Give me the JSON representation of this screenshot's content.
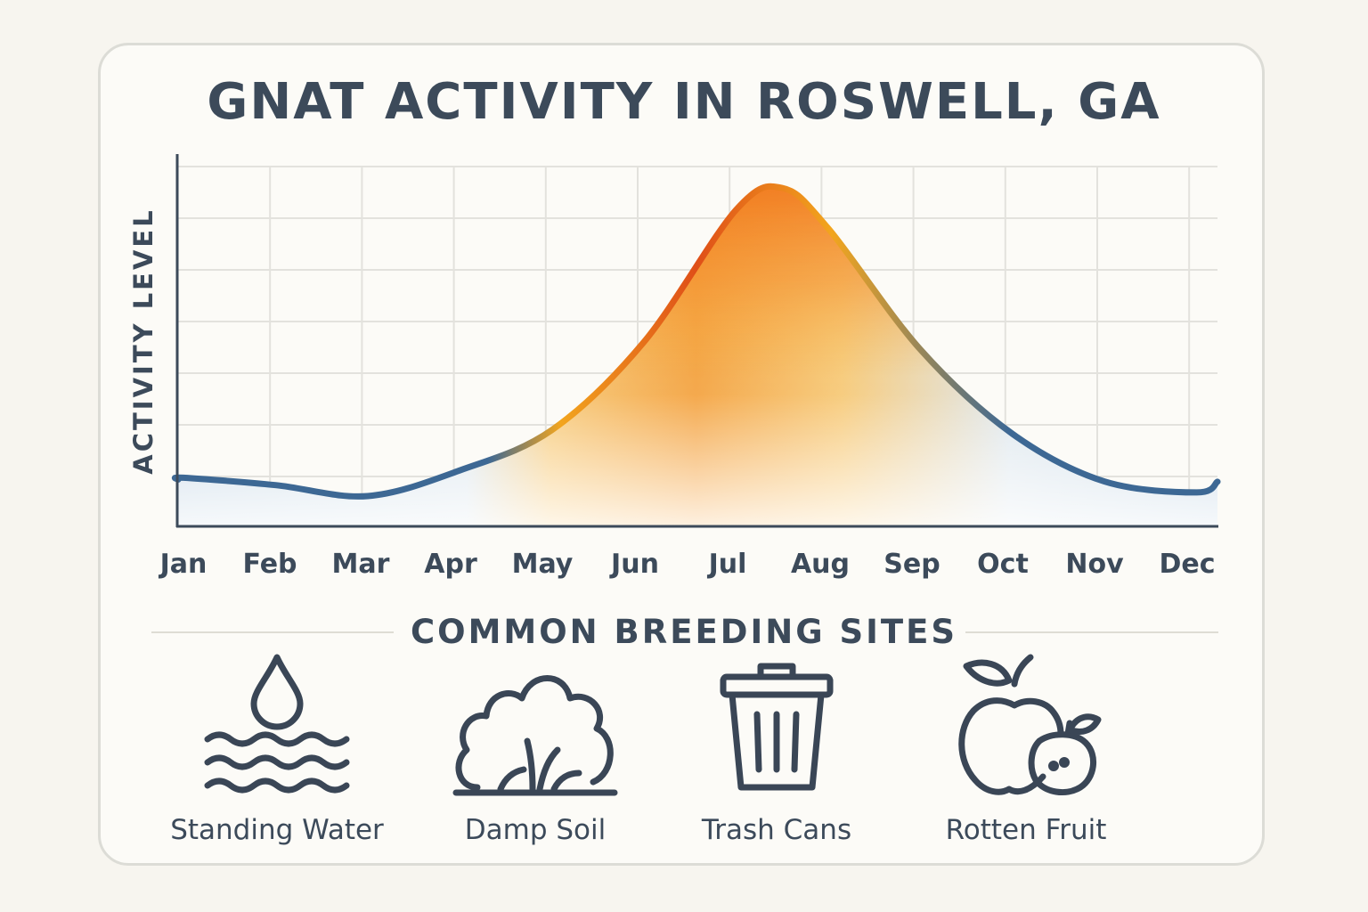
{
  "chart_data": {
    "type": "area",
    "title": "GNAT ACTIVITY IN ROSWELL, GA",
    "ylabel": "ACTIVITY LEVEL",
    "xlabel": "",
    "categories": [
      "Jan",
      "Feb",
      "Mar",
      "Apr",
      "May",
      "Jun",
      "Jul",
      "Aug",
      "Sep",
      "Oct",
      "Nov",
      "Dec"
    ],
    "series": [
      {
        "values": [
          0.13,
          0.11,
          0.08,
          0.15,
          0.26,
          0.5,
          0.86,
          0.81,
          0.48,
          0.25,
          0.12,
          0.09
        ]
      }
    ],
    "peak": {
      "x_month": 6.5,
      "value": 0.92
    },
    "ylim": [
      0,
      1
    ],
    "y_ticks_labeled": false,
    "grid": true,
    "legend": "none",
    "colors": {
      "low": "#3d6894",
      "mid": "#f2a51e",
      "high": "#e55a17"
    }
  },
  "breeding_sites": {
    "heading": "COMMON BREEDING SITES",
    "items": [
      {
        "label": "Standing Water",
        "icon": "water-drop-waves-icon"
      },
      {
        "label": "Damp Soil",
        "icon": "bush-grass-icon"
      },
      {
        "label": "Trash Cans",
        "icon": "trash-can-icon"
      },
      {
        "label": "Rotten Fruit",
        "icon": "apple-fruit-icon"
      }
    ]
  }
}
